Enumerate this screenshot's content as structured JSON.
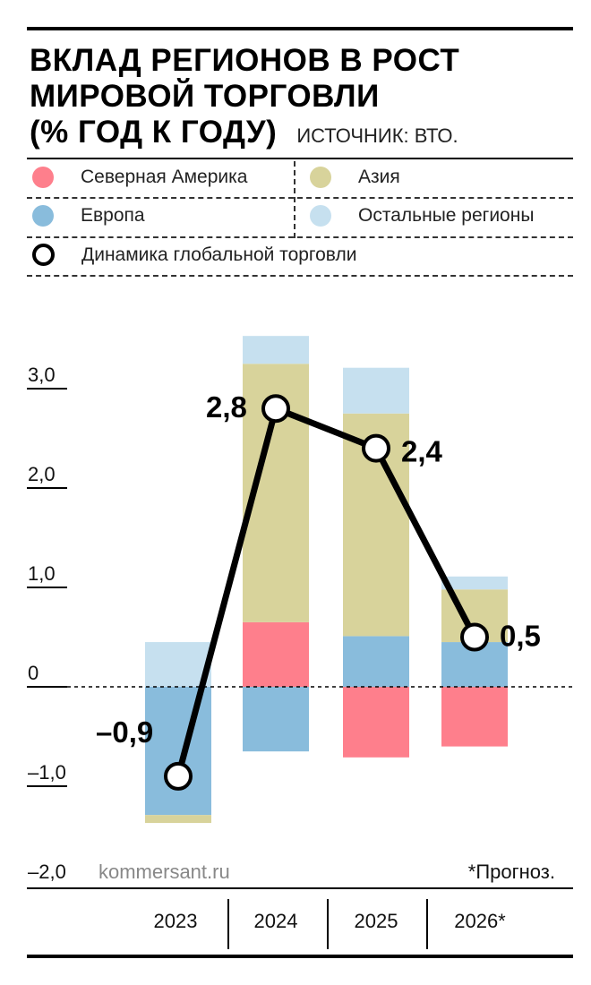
{
  "title_lines": [
    "ВКЛАД РЕГИОНОВ В РОСТ",
    "МИРОВОЙ ТОРГОВЛИ",
    "(% ГОД К ГОДУ)"
  ],
  "source": "ИСТОЧНИК: ВТО.",
  "legend": {
    "north_america": "Северная Америка",
    "asia": "Азия",
    "europe": "Европа",
    "rest": "Остальные регионы",
    "global": "Динамика глобальной торговли"
  },
  "colors": {
    "north_america": "#fe7f8c",
    "europe": "#89bcdc",
    "asia": "#d8d39b",
    "rest": "#c6e0ef",
    "line": "#000000"
  },
  "footer": {
    "site": "kommersant.ru",
    "note": "*Прогноз."
  },
  "chart_data": {
    "type": "bar",
    "stacked": true,
    "title": "Вклад регионов в рост мировой торговли (% год к году)",
    "categories": [
      "2023",
      "2024",
      "2025",
      "2026*"
    ],
    "ylim": [
      -2.0,
      3.5
    ],
    "yticks": [
      3.0,
      2.0,
      1.0,
      0,
      -1.0,
      -2.0
    ],
    "ytick_labels": [
      "3,0",
      "2,0",
      "1,0",
      "0",
      "–1,0",
      "–2,0"
    ],
    "series": [
      {
        "key": "north_america",
        "name": "Северная Америка",
        "values": [
          0,
          0.65,
          -0.71,
          -0.6
        ]
      },
      {
        "key": "europe",
        "name": "Европа",
        "values": [
          -1.29,
          -0.65,
          0.51,
          0.45
        ]
      },
      {
        "key": "asia",
        "name": "Азия",
        "values": [
          -0.08,
          2.6,
          2.24,
          0.53
        ]
      },
      {
        "key": "rest",
        "name": "Остальные регионы",
        "values": [
          0.45,
          0.28,
          0.46,
          0.13
        ]
      }
    ],
    "line": {
      "name": "Динамика глобальной торговли",
      "values": [
        -0.9,
        2.8,
        2.4,
        0.5
      ],
      "labels": [
        "–0,9",
        "2,8",
        "2,4",
        "0,5"
      ]
    }
  }
}
